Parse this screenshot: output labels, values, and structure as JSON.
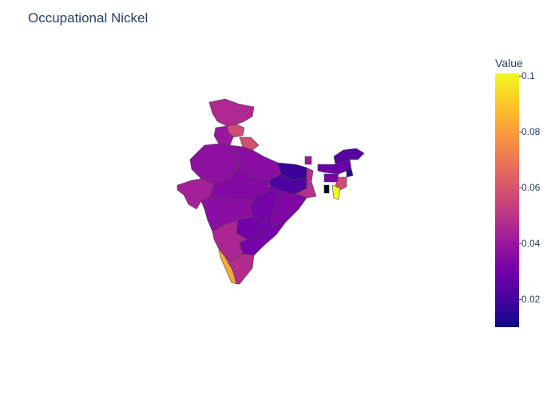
{
  "title": "Occupational Nickel",
  "colorbar": {
    "title": "Value",
    "ticks": [
      "0.1",
      "0.08",
      "0.06",
      "0.04",
      "0.02"
    ],
    "tick_values": [
      0.1,
      0.08,
      0.06,
      0.04,
      0.02
    ],
    "min": 0.01,
    "max": 0.101,
    "colorscale": [
      "#0d0887",
      "#46039f",
      "#7201a8",
      "#9c179e",
      "#bd3786",
      "#d8576b",
      "#ed7953",
      "#fb9f3a",
      "#fdca26",
      "#f0f921"
    ]
  },
  "map": {
    "region": "India",
    "regions": [
      {
        "name": "Jammu & Kashmir",
        "value": 0.046
      },
      {
        "name": "Himachal Pradesh",
        "value": 0.057
      },
      {
        "name": "Uttarakhand",
        "value": 0.058
      },
      {
        "name": "Punjab",
        "value": 0.04
      },
      {
        "name": "Rajasthan",
        "value": 0.037
      },
      {
        "name": "Gujarat",
        "value": 0.043
      },
      {
        "name": "Uttar Pradesh",
        "value": 0.036
      },
      {
        "name": "Madhya Pradesh",
        "value": 0.034
      },
      {
        "name": "Bihar",
        "value": 0.018
      },
      {
        "name": "Jharkhand",
        "value": 0.022
      },
      {
        "name": "West Bengal",
        "value": 0.048
      },
      {
        "name": "Chhattisgarh",
        "value": 0.031
      },
      {
        "name": "Odisha",
        "value": 0.033
      },
      {
        "name": "Maharashtra",
        "value": 0.036
      },
      {
        "name": "Telangana",
        "value": 0.03
      },
      {
        "name": "Andhra Pradesh",
        "value": 0.031
      },
      {
        "name": "Karnataka",
        "value": 0.045
      },
      {
        "name": "Kerala",
        "value": 0.083
      },
      {
        "name": "Tamil Nadu",
        "value": 0.047
      },
      {
        "name": "Sikkim",
        "value": 0.041
      },
      {
        "name": "Assam",
        "value": 0.028
      },
      {
        "name": "Arunachal Pradesh",
        "value": 0.024
      },
      {
        "name": "Nagaland",
        "value": 0.015
      },
      {
        "name": "Manipur",
        "value": 0.057
      },
      {
        "name": "Mizoram",
        "value": 0.101
      },
      {
        "name": "Tripura",
        "value": null
      },
      {
        "name": "Meghalaya",
        "value": 0.032
      }
    ]
  }
}
